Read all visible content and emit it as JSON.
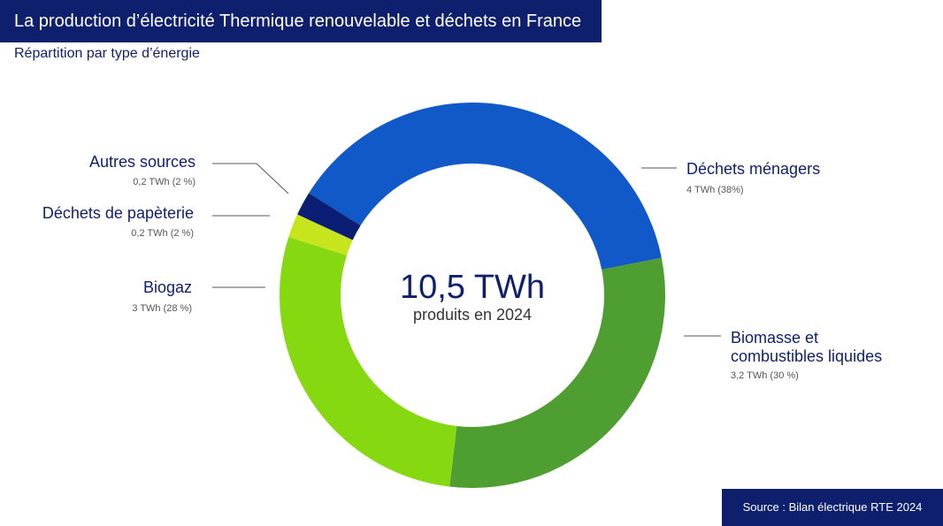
{
  "header": {
    "title": "La production d’électricité Thermique renouvelable et déchets en France",
    "subtitle": "Répartition par type d’énergie"
  },
  "center": {
    "value": "10,5 TWh",
    "caption": "produits en 2024"
  },
  "source": "Source : Bilan électrique RTE 2024",
  "chart_data": {
    "type": "pie",
    "donut": true,
    "unit": "TWh",
    "total": 10.5,
    "segments": [
      {
        "name": "Déchets ménagers",
        "value": 4,
        "percent": 38,
        "value_label": "4 TWh (38%)",
        "color": "#1159c9"
      },
      {
        "name": "Biomasse et combustibles liquides",
        "name_lines": [
          "Biomasse et",
          "combustibles liquides"
        ],
        "value": 3.2,
        "percent": 30,
        "value_label": "3,2 TWh (30 %)",
        "color": "#4f9e31"
      },
      {
        "name": "Biogaz",
        "value": 3,
        "percent": 28,
        "value_label": "3 TWh (28 %)",
        "color": "#86d911"
      },
      {
        "name": "Déchets de papèterie",
        "value": 0.2,
        "percent": 2,
        "value_label": "0,2 TWh (2 %)",
        "color": "#c6e51c"
      },
      {
        "name": "Autres sources",
        "value": 0.2,
        "percent": 2,
        "value_label": "0,2 TWh (2 %)",
        "color": "#0a1f74"
      }
    ]
  }
}
